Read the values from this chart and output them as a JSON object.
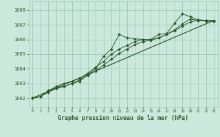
{
  "bg_color": "#cce8dc",
  "grid_color": "#99ccb8",
  "line_color": "#2d5a2d",
  "marker_color": "#2d5a2d",
  "title": "Graphe pression niveau de la mer (hPa)",
  "title_color": "#2d5a2d",
  "xlim": [
    -0.5,
    23.5
  ],
  "ylim": [
    1001.4,
    1008.6
  ],
  "yticks": [
    1002,
    1003,
    1004,
    1005,
    1006,
    1007,
    1008
  ],
  "xticks": [
    0,
    1,
    2,
    3,
    4,
    5,
    6,
    7,
    8,
    9,
    10,
    11,
    12,
    13,
    14,
    15,
    16,
    17,
    18,
    19,
    20,
    21,
    22,
    23
  ],
  "series1_x": [
    0,
    1,
    2,
    3,
    4,
    5,
    6,
    7,
    8,
    9,
    10,
    11,
    12,
    13,
    14,
    15,
    16,
    17,
    18,
    19,
    20,
    21,
    22,
    23
  ],
  "series1_y": [
    1002.0,
    1002.1,
    1002.5,
    1002.7,
    1002.8,
    1003.0,
    1003.15,
    1003.6,
    1004.0,
    1004.85,
    1005.35,
    1006.35,
    1006.1,
    1006.05,
    1006.0,
    1006.0,
    1006.35,
    1006.4,
    1007.1,
    1007.75,
    1007.55,
    1007.35,
    1007.3,
    1007.3
  ],
  "series2_x": [
    0,
    1,
    2,
    3,
    4,
    5,
    6,
    7,
    8,
    9,
    10,
    11,
    12,
    13,
    14,
    15,
    16,
    17,
    18,
    19,
    20,
    21,
    22,
    23
  ],
  "series2_y": [
    1002.0,
    1002.1,
    1002.5,
    1002.8,
    1003.0,
    1003.15,
    1003.35,
    1003.7,
    1004.1,
    1004.5,
    1005.0,
    1005.35,
    1005.6,
    1005.85,
    1006.0,
    1006.0,
    1006.1,
    1006.35,
    1006.65,
    1007.05,
    1007.4,
    1007.3,
    1007.3,
    1007.25
  ],
  "series3_x": [
    0,
    1,
    2,
    3,
    4,
    5,
    6,
    7,
    8,
    9,
    10,
    11,
    12,
    13,
    14,
    15,
    16,
    17,
    18,
    19,
    20,
    21,
    22,
    23
  ],
  "series3_y": [
    1002.0,
    1002.1,
    1002.4,
    1002.65,
    1002.8,
    1003.0,
    1003.25,
    1003.55,
    1003.85,
    1004.25,
    1004.65,
    1005.05,
    1005.35,
    1005.65,
    1005.85,
    1005.95,
    1006.1,
    1006.35,
    1006.6,
    1006.9,
    1007.2,
    1007.3,
    1007.25,
    1007.25
  ],
  "trend_x": [
    0,
    23
  ],
  "trend_y": [
    1002.0,
    1007.3
  ]
}
